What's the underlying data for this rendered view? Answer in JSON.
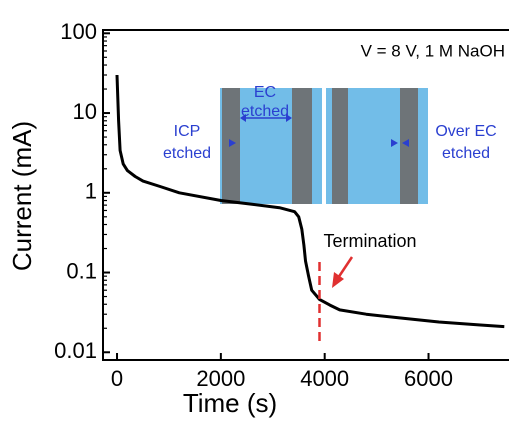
{
  "chart_data": {
    "type": "line",
    "log_y": true,
    "x_label": "Time (s)",
    "y_label": "Current (mA)",
    "condition_label": "V = 8 V, 1 M NaOH",
    "xlim": [
      -270,
      7550
    ],
    "xticks": [
      0,
      2000,
      4000,
      6000
    ],
    "ylim": [
      0.008,
      110
    ],
    "yticks": [
      100,
      10,
      1,
      0.1,
      0.01
    ],
    "series": [
      {
        "color": "#000000",
        "x": [
          0,
          30,
          60,
          120,
          200,
          350,
          500,
          830,
          1200,
          2000,
          2600,
          3130,
          3420,
          3500,
          3560,
          3600,
          3630,
          3690,
          3750,
          3900,
          4100,
          4290,
          4800,
          5440,
          6200,
          7000,
          7460
        ],
        "values": [
          30,
          8,
          3.4,
          2.3,
          1.9,
          1.6,
          1.4,
          1.2,
          1.0,
          0.8,
          0.72,
          0.65,
          0.58,
          0.5,
          0.35,
          0.22,
          0.14,
          0.09,
          0.06,
          0.046,
          0.039,
          0.034,
          0.03,
          0.027,
          0.024,
          0.022,
          0.021
        ]
      }
    ],
    "termination": {
      "label": "Termination",
      "time": 3900,
      "color": "#e03030"
    },
    "inset_labels": [
      {
        "lines": [
          "EC",
          "etched"
        ]
      },
      {
        "lines": [
          "ICP",
          "etched"
        ]
      },
      {
        "lines": [
          "Over EC",
          "etched"
        ]
      }
    ]
  }
}
